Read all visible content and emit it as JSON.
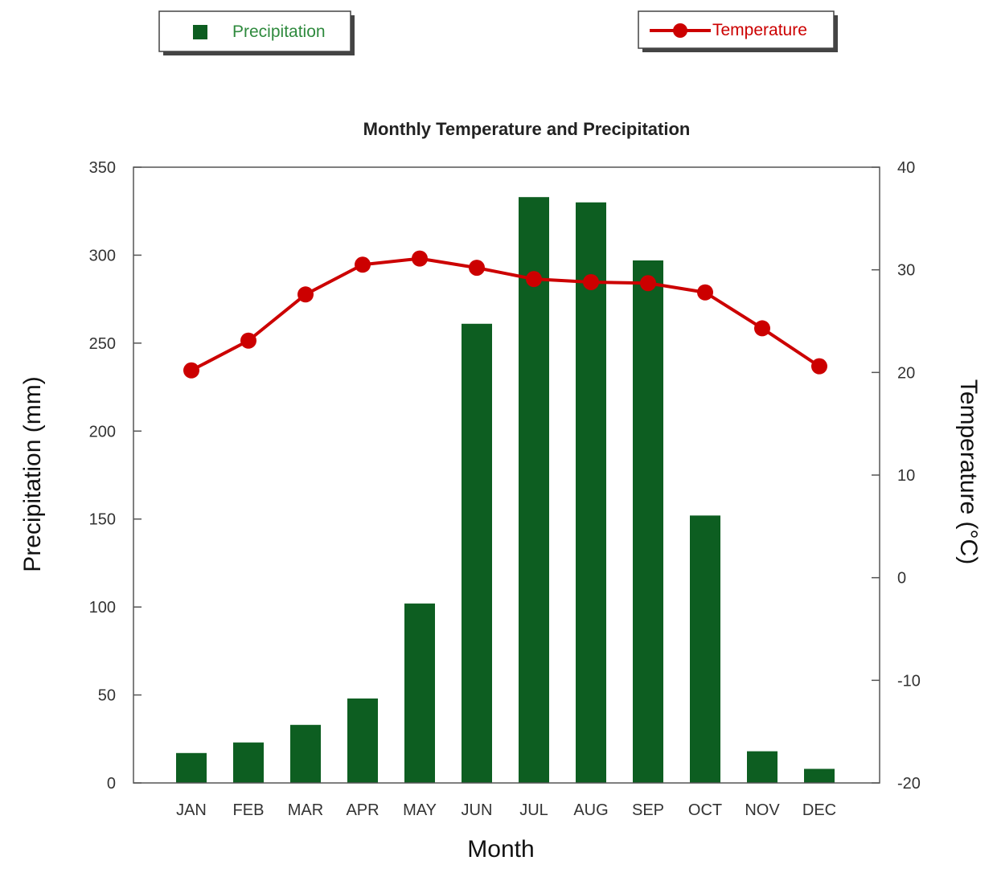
{
  "chart_data": {
    "type": "bar",
    "title": "Monthly Temperature and Precipitation",
    "xlabel": "Month",
    "ylabel": "Precipitation (mm)",
    "y2label": "Temperature (°C)",
    "categories": [
      "JAN",
      "FEB",
      "MAR",
      "APR",
      "MAY",
      "JUN",
      "JUL",
      "AUG",
      "SEP",
      "OCT",
      "NOV",
      "DEC"
    ],
    "ylim": [
      0,
      350
    ],
    "yticks": [
      0,
      50,
      100,
      150,
      200,
      250,
      300,
      350
    ],
    "y2lim": [
      -20,
      40
    ],
    "y2ticks": [
      -20,
      -10,
      0,
      10,
      20,
      30,
      40
    ],
    "series": [
      {
        "name": "Precipitation",
        "type": "bar",
        "axis": "left",
        "color": "#0d5e21",
        "values": [
          17,
          23,
          33,
          48,
          102,
          261,
          333,
          330,
          297,
          152,
          18,
          8
        ]
      },
      {
        "name": "Temperature",
        "type": "line",
        "axis": "right",
        "color": "#cc0000",
        "values": [
          20.2,
          23.1,
          27.6,
          30.5,
          31.1,
          30.2,
          29.1,
          28.8,
          28.7,
          27.8,
          24.3,
          20.6
        ]
      }
    ],
    "legend": [
      "top-left",
      "top-right"
    ],
    "grid": false
  }
}
